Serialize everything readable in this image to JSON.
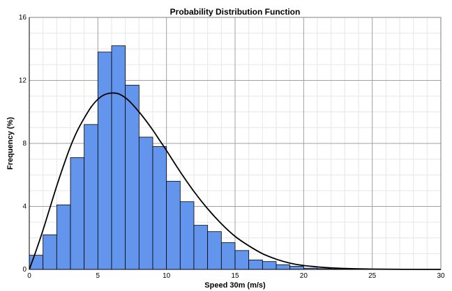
{
  "chart_data": {
    "type": "bar",
    "title": "Probability Distribution Function",
    "xlabel": "Speed 30m (m/s)",
    "ylabel": "Frequency (%)",
    "xlim": [
      0,
      30
    ],
    "ylim": [
      0,
      16
    ],
    "xticks": [
      0,
      5,
      10,
      15,
      20,
      25,
      30
    ],
    "yticks": [
      0,
      4,
      8,
      12,
      16
    ],
    "grid": true,
    "bin_width": 1,
    "bins": [
      {
        "x0": 0,
        "x1": 1,
        "value": 0.9
      },
      {
        "x0": 1,
        "x1": 2,
        "value": 2.2
      },
      {
        "x0": 2,
        "x1": 3,
        "value": 4.1
      },
      {
        "x0": 3,
        "x1": 4,
        "value": 7.1
      },
      {
        "x0": 4,
        "x1": 5,
        "value": 9.2
      },
      {
        "x0": 5,
        "x1": 6,
        "value": 13.8
      },
      {
        "x0": 6,
        "x1": 7,
        "value": 14.2
      },
      {
        "x0": 7,
        "x1": 8,
        "value": 11.7
      },
      {
        "x0": 8,
        "x1": 9,
        "value": 8.4
      },
      {
        "x0": 9,
        "x1": 10,
        "value": 7.8
      },
      {
        "x0": 10,
        "x1": 11,
        "value": 5.6
      },
      {
        "x0": 11,
        "x1": 12,
        "value": 4.3
      },
      {
        "x0": 12,
        "x1": 13,
        "value": 2.8
      },
      {
        "x0": 13,
        "x1": 14,
        "value": 2.4
      },
      {
        "x0": 14,
        "x1": 15,
        "value": 1.7
      },
      {
        "x0": 15,
        "x1": 16,
        "value": 1.2
      },
      {
        "x0": 16,
        "x1": 17,
        "value": 0.6
      },
      {
        "x0": 17,
        "x1": 18,
        "value": 0.5
      },
      {
        "x0": 18,
        "x1": 19,
        "value": 0.3
      },
      {
        "x0": 19,
        "x1": 20,
        "value": 0.2
      },
      {
        "x0": 20,
        "x1": 21,
        "value": 0.08
      },
      {
        "x0": 21,
        "x1": 22,
        "value": 0.05
      },
      {
        "x0": 22,
        "x1": 23,
        "value": 0.03
      },
      {
        "x0": 23,
        "x1": 24,
        "value": 0.02
      },
      {
        "x0": 24,
        "x1": 25,
        "value": 0.02
      },
      {
        "x0": 25,
        "x1": 26,
        "value": 0.01
      },
      {
        "x0": 26,
        "x1": 27,
        "value": 0.01
      },
      {
        "x0": 27,
        "x1": 28,
        "value": 0.01
      },
      {
        "x0": 28,
        "x1": 29,
        "value": 0.01
      },
      {
        "x0": 29,
        "x1": 30,
        "value": 0.01
      }
    ],
    "fit_curve": {
      "x": [
        0,
        0.5,
        1,
        1.5,
        2,
        2.5,
        3,
        3.5,
        4,
        4.5,
        5,
        5.5,
        6,
        6.5,
        7,
        7.5,
        8,
        8.5,
        9,
        9.5,
        10,
        11,
        12,
        13,
        14,
        15,
        16,
        17,
        18,
        19,
        20,
        22,
        25,
        30
      ],
      "y": [
        0,
        1.2,
        2.5,
        3.9,
        5.3,
        6.6,
        7.8,
        8.8,
        9.6,
        10.3,
        10.8,
        11.1,
        11.2,
        11.15,
        10.9,
        10.5,
        10.0,
        9.45,
        8.85,
        8.2,
        7.55,
        6.2,
        4.95,
        3.85,
        2.9,
        2.1,
        1.5,
        1.0,
        0.65,
        0.4,
        0.25,
        0.1,
        0.02,
        0
      ]
    },
    "colors": {
      "bar_fill": "#6495ED",
      "bar_stroke": "#000000",
      "curve": "#000000"
    }
  }
}
